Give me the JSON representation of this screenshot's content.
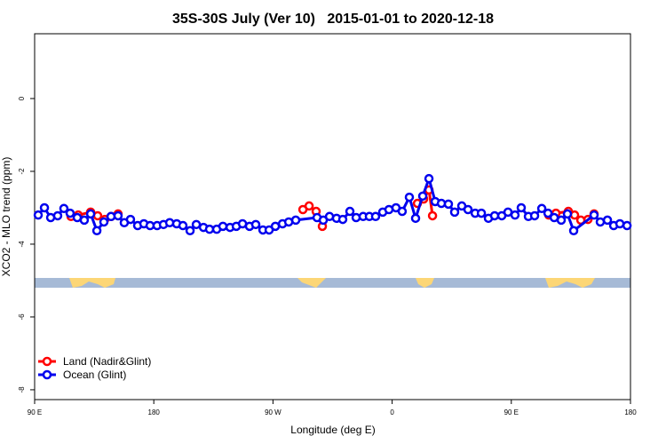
{
  "chart_data": {
    "type": "line",
    "title": "35S-30S July (Ver 10)   2015-01-01 to 2020-12-18",
    "x_label": "Longitude (deg E)",
    "y_label": "XCO2 - MLO trend (ppm)",
    "xlim": [
      90,
      540
    ],
    "ylim": [
      -8.27,
      1.78
    ],
    "xticks": [
      {
        "value": 90,
        "label": "90 E"
      },
      180,
      {
        "value": 270,
        "label": "90 W"
      },
      {
        "value": 360,
        "label": "0"
      },
      {
        "value": 450,
        "label": "90 E"
      },
      {
        "value": 540,
        "label": "180"
      }
    ],
    "yticks": [
      -8,
      -6,
      -4,
      -2,
      0
    ],
    "legend": "bottom-left",
    "series": [
      {
        "name": "Land (Nadir&Glint)",
        "color": "#ff0000",
        "x": [
          117.5,
          122.9,
          132.3,
          137.6,
          143,
          147.7,
          153,
          null,
          292.6,
          297.3,
          302.6,
          307.3,
          null,
          379.1,
          383.8,
          387.8,
          390.5,
          null,
          478.3,
          483.7,
          493.1,
          497.8,
          502.5,
          507.9,
          512.5
        ],
        "values": [
          -3.24,
          -3.2,
          -3.12,
          -3.22,
          -3.32,
          -3.24,
          -3.17,
          null,
          -3.05,
          -2.95,
          -3.1,
          -3.51,
          null,
          -2.88,
          -2.76,
          -2.51,
          -3.22,
          null,
          -3.2,
          -3.15,
          -3.1,
          -3.2,
          -3.34,
          -3.32,
          -3.17
        ]
      },
      {
        "name": "Ocean (Glint)",
        "color": "#0000ee",
        "x": [
          92.7,
          97.4,
          102.1,
          107.4,
          112.1,
          116.8,
          122.2,
          127.5,
          132.3,
          137,
          142.3,
          147.7,
          153,
          157.7,
          162.4,
          167.8,
          172.5,
          177.2,
          182.5,
          187.3,
          192,
          197.3,
          202,
          207.4,
          212.1,
          217.5,
          222.1,
          227.5,
          232.2,
          237.6,
          242.3,
          247,
          252.3,
          257,
          262.4,
          267.1,
          271.8,
          277.2,
          281.9,
          287.2,
          303.3,
          308,
          312.7,
          318,
          322.7,
          328.1,
          332.8,
          338.1,
          342.8,
          347.5,
          352.9,
          357.6,
          362.9,
          367.6,
          373,
          377.7,
          383.1,
          387.8,
          392.5,
          397.2,
          402.5,
          407.2,
          412.6,
          417.3,
          422.7,
          427.4,
          432.7,
          437.4,
          442.8,
          447.5,
          452.8,
          457.5,
          462.9,
          467.6,
          473,
          477.7,
          482.4,
          487.7,
          492.4,
          497.1,
          512.5,
          517.2,
          522.6,
          527.3,
          532,
          537.4
        ],
        "values": [
          -3.2,
          -3.0,
          -3.27,
          -3.22,
          -3.02,
          -3.15,
          -3.27,
          -3.34,
          -3.17,
          -3.63,
          -3.39,
          -3.24,
          -3.22,
          -3.41,
          -3.32,
          -3.49,
          -3.44,
          -3.49,
          -3.49,
          -3.46,
          -3.41,
          -3.44,
          -3.49,
          -3.63,
          -3.46,
          -3.54,
          -3.59,
          -3.59,
          -3.51,
          -3.54,
          -3.51,
          -3.44,
          -3.51,
          -3.46,
          -3.61,
          -3.61,
          -3.51,
          -3.44,
          -3.39,
          -3.34,
          -3.27,
          -3.34,
          -3.24,
          -3.29,
          -3.32,
          -3.1,
          -3.27,
          -3.24,
          -3.24,
          -3.24,
          -3.12,
          -3.05,
          -3.0,
          -3.1,
          -2.71,
          -3.29,
          -2.68,
          -2.2,
          -2.83,
          -2.88,
          -2.9,
          -3.12,
          -2.95,
          -3.05,
          -3.15,
          -3.15,
          -3.29,
          -3.22,
          -3.22,
          -3.12,
          -3.2,
          -3.0,
          -3.24,
          -3.22,
          -3.02,
          -3.15,
          -3.27,
          -3.34,
          -3.17,
          -3.63,
          -3.2,
          -3.39,
          -3.34,
          -3.49,
          -3.44,
          -3.49
        ]
      }
    ]
  }
}
